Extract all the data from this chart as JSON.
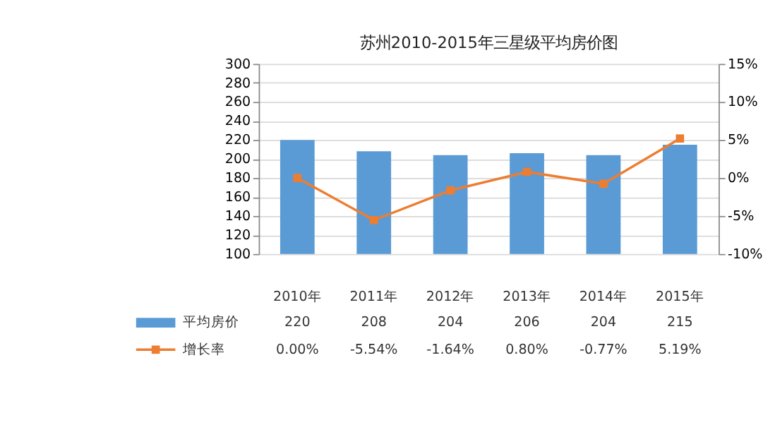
{
  "chart_data": {
    "type": "bar",
    "title": "苏州2010-2015年三星级平均房价图",
    "categories": [
      "2010年",
      "2011年",
      "2012年",
      "2013年",
      "2014年",
      "2015年"
    ],
    "series": [
      {
        "name": "平均房价",
        "color": "#5b9bd5",
        "values": [
          220,
          208,
          204,
          206,
          204,
          215
        ],
        "value_labels": [
          "220",
          "208",
          "204",
          "206",
          "204",
          "215"
        ]
      },
      {
        "name": "增长率",
        "type": "line",
        "axis": "y2",
        "color": "#ed7d31",
        "marker": "square",
        "values": [
          0.0,
          -5.54,
          -1.64,
          0.8,
          -0.77,
          5.19
        ],
        "value_labels": [
          "0.00%",
          "-5.54%",
          "-1.64%",
          "0.80%",
          "-0.77%",
          "5.19%"
        ]
      }
    ],
    "ylim": [
      100,
      300
    ],
    "yticks": [
      100,
      120,
      140,
      160,
      180,
      200,
      220,
      240,
      260,
      280,
      300
    ],
    "y2lim": [
      -10,
      15
    ],
    "y2ticks": [
      {
        "value": -10,
        "label": "-10%"
      },
      {
        "value": -5,
        "label": "-5%"
      },
      {
        "value": 0,
        "label": "0%"
      },
      {
        "value": 5,
        "label": "5%"
      },
      {
        "value": 10,
        "label": "10%"
      },
      {
        "value": 15,
        "label": "15%"
      }
    ],
    "grid": "y",
    "legend": "bottom left"
  }
}
